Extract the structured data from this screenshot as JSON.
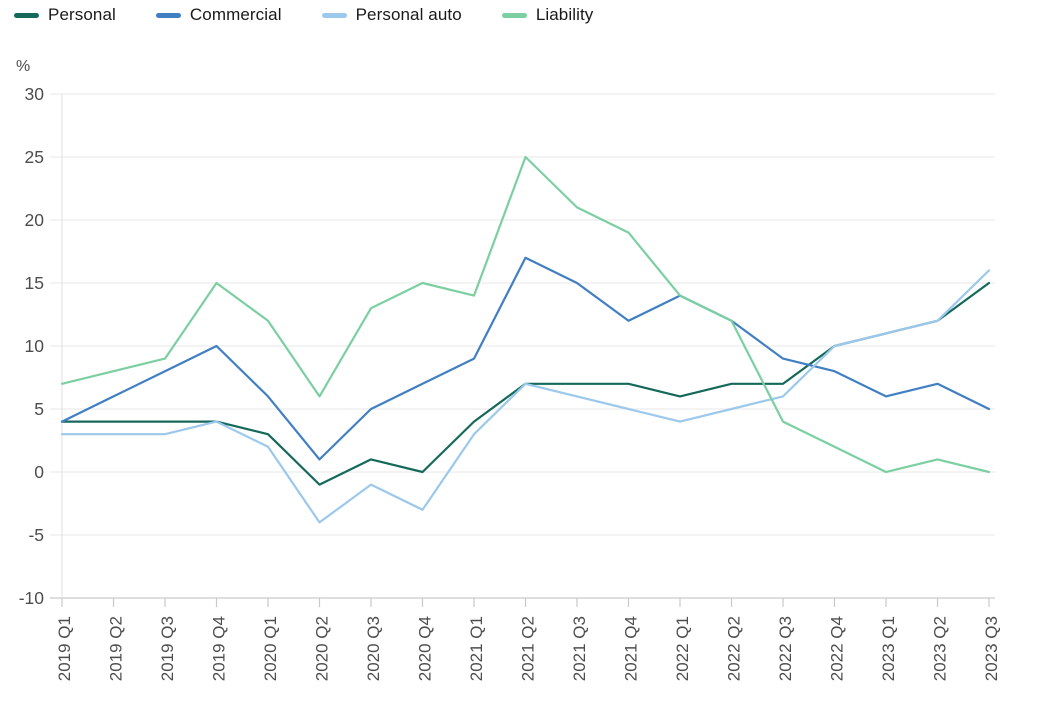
{
  "legend": {
    "items": [
      {
        "label": "Personal",
        "color": "#15695a"
      },
      {
        "label": "Commercial",
        "color": "#417fc3"
      },
      {
        "label": "Personal auto",
        "color": "#9cc8ec"
      },
      {
        "label": "Liability",
        "color": "#7bcfa1"
      }
    ]
  },
  "chart_data": {
    "type": "line",
    "title": "",
    "unit_label": "%",
    "xlabel": "",
    "ylabel": "%",
    "ylim": [
      -10,
      30
    ],
    "yticks": [
      30,
      25,
      20,
      15,
      10,
      5,
      0,
      -5,
      -10
    ],
    "grid": "horizontal",
    "legend_position": "top-left",
    "categories": [
      "2019 Q1",
      "2019 Q2",
      "2019 Q3",
      "2019 Q4",
      "2020 Q1",
      "2020 Q2",
      "2020 Q3",
      "2020 Q4",
      "2021 Q1",
      "2021 Q2",
      "2021 Q3",
      "2021 Q4",
      "2022 Q1",
      "2022 Q2",
      "2022 Q3",
      "2022 Q4",
      "2023 Q1",
      "2023 Q2",
      "2023 Q3"
    ],
    "series": [
      {
        "name": "Personal",
        "color": "#15695a",
        "values": [
          4,
          4,
          4,
          4,
          3,
          -1,
          1,
          0,
          4,
          7,
          7,
          7,
          6,
          7,
          7,
          10,
          11,
          12,
          15
        ]
      },
      {
        "name": "Commercial",
        "color": "#417fc3",
        "values": [
          4,
          6,
          8,
          10,
          6,
          1,
          5,
          7,
          9,
          17,
          15,
          12,
          14,
          12,
          9,
          8,
          6,
          7,
          5
        ]
      },
      {
        "name": "Personal auto",
        "color": "#9cc8ec",
        "values": [
          3,
          3,
          3,
          4,
          2,
          -4,
          -1,
          -3,
          3,
          7,
          6,
          5,
          4,
          5,
          6,
          10,
          11,
          12,
          16
        ]
      },
      {
        "name": "Liability",
        "color": "#7bcfa1",
        "values": [
          7,
          8,
          9,
          15,
          12,
          6,
          13,
          15,
          14,
          25,
          21,
          19,
          14,
          12,
          4,
          2,
          0,
          1,
          0
        ]
      }
    ]
  }
}
